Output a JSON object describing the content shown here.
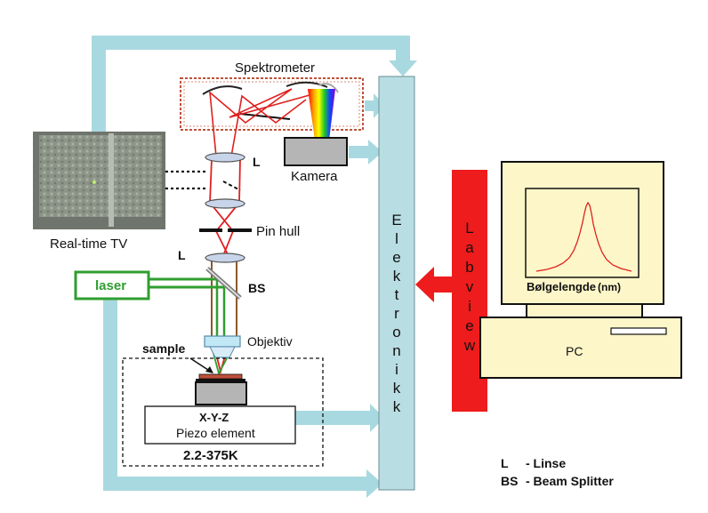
{
  "labels": {
    "spektrometer": "Spektrometer",
    "kamera": "Kamera",
    "lens_upper": "L",
    "pin_hull": "Pin hull",
    "lens_lower": "L",
    "bs": "BS",
    "laser": "laser",
    "objektiv": "Objektiv",
    "sample": "sample",
    "xyz": "X-Y-Z",
    "piezo": "Piezo element",
    "temperature": "2.2-375K",
    "realtime_tv": "Real-time TV",
    "elektronikk_letters": [
      "E",
      "l",
      "e",
      "k",
      "t",
      "r",
      "o",
      "n",
      "i",
      "k",
      "k"
    ],
    "labview_letters": [
      "L",
      "a",
      "b",
      "v",
      "i",
      "e",
      "w"
    ],
    "wavelength": "Bølgelengde",
    "wavelength_unit": "(nm)",
    "pc": "PC"
  },
  "legend": {
    "l_key": "L",
    "l_desc": "-  Linse",
    "bs_key": "BS",
    "bs_desc": "-  Beam Splitter"
  },
  "colors": {
    "arrow_blue": "#a9d9e0",
    "column_blue": "#b8dde3",
    "laser_green": "#2f9e2f",
    "beam_red": "#e02020",
    "labview_red": "#ee1c1c",
    "monitor_yellow": "#fdf6c8",
    "spectrometer_border": "#c0503a",
    "lens_fill": "#c8d4ea"
  }
}
